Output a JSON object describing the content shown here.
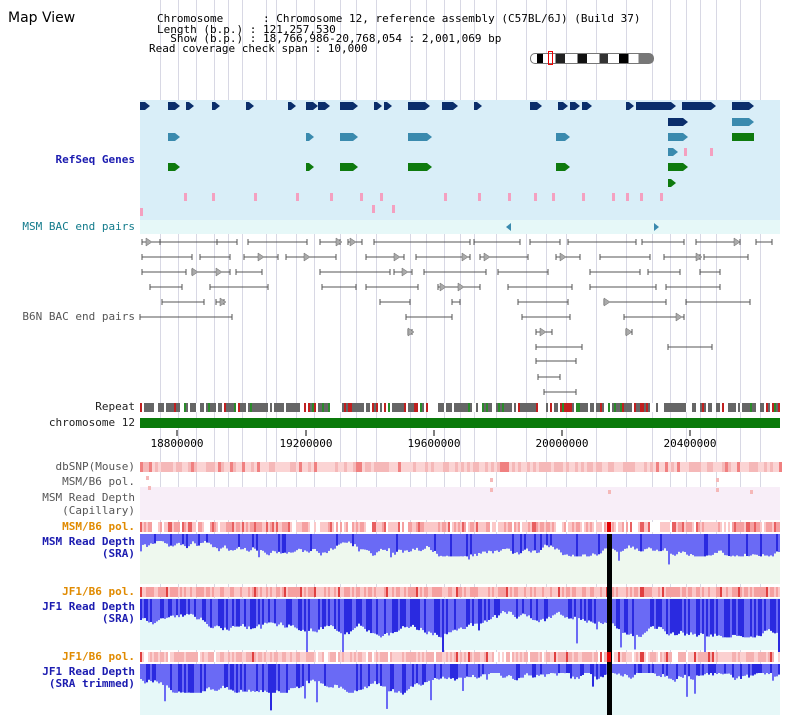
{
  "title": "Map View",
  "header": {
    "line1": "Chromosome      : Chromosome 12, reference assembly (C57BL/6J) (Build 37)",
    "line2": "Length (b.p.) : 121,257,530",
    "line3": "  Show (b.p.) : 18,766,986-20,768,054 : 2,001,069 bp",
    "line4": "Read coverage check span : 10,000"
  },
  "tracks": {
    "refseq": "RefSeq Genes",
    "msm_bac": "MSM BAC end pairs",
    "b6n_bac": "B6N BAC end pairs",
    "repeat": "Repeat",
    "chromosome": "chromosome 12",
    "dbsnp": "dbSNP(Mouse)",
    "msm_b6_pol_top": "MSM/B6 pol.",
    "msm_read_depth_cap_1": "MSM Read Depth",
    "msm_read_depth_cap_2": "(Capillary)",
    "msm_b6_pol": "MSM/B6 pol.",
    "msm_read_depth_sra_1": "MSM Read Depth",
    "msm_read_depth_sra_2": "(SRA)",
    "jf1_b6_pol_1": "JF1/B6 pol.",
    "jf1_read_depth_sra_1": "JF1 Read Depth",
    "jf1_read_depth_sra_2": "(SRA)",
    "jf1_b6_pol_2": "JF1/B6 pol.",
    "jf1_read_depth_trim_1": "JF1 Read Depth",
    "jf1_read_depth_trim_2": "(SRA trimmed)"
  },
  "axis": {
    "ticks": [
      "18800000",
      "19200000",
      "19600000",
      "20000000",
      "20400000"
    ]
  },
  "colors": {
    "refseq_bg": "#d9eef8",
    "bac_bg": "#e6f8f8",
    "gene_dark": "#0b2e6b",
    "gene_teal": "#3a8aae",
    "gene_green": "#0e7a0e",
    "pink": "#f4a0c0",
    "chrom": "#0a7a0a",
    "snp": "#f5b8b8",
    "depth": "#4a4af0",
    "cursor": "#000000"
  }
}
